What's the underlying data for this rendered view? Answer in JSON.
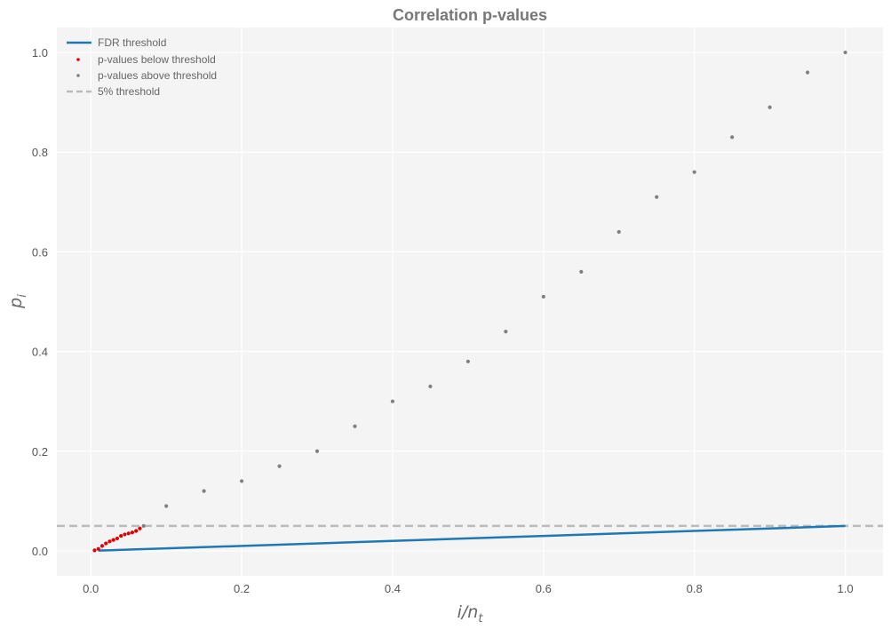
{
  "chart_data": {
    "type": "scatter",
    "title": "Correlation p-values",
    "xlabel": "i/n",
    "xlabel_sub": "t",
    "ylabel": "p",
    "ylabel_sub": "i",
    "xlim": [
      -0.045,
      1.05
    ],
    "ylim": [
      -0.05,
      1.05
    ],
    "x_ticks": [
      0.0,
      0.2,
      0.4,
      0.6,
      0.8,
      1.0
    ],
    "y_ticks": [
      0.0,
      0.2,
      0.4,
      0.6,
      0.8,
      1.0
    ],
    "x_tick_labels": [
      "0.0",
      "0.2",
      "0.4",
      "0.6",
      "0.8",
      "1.0"
    ],
    "y_tick_labels": [
      "0.0",
      "0.2",
      "0.4",
      "0.6",
      "0.8",
      "1.0"
    ],
    "grid": true,
    "legend_position": "top-left",
    "legend": [
      "FDR threshold",
      "p-values below threshold",
      "p-values above threshold",
      "5% threshold"
    ],
    "colors": {
      "fdr": "#1f77b4",
      "below": "#e00000",
      "above": "#808080",
      "threshold": "#bbbbbb",
      "plot_bg": "#f4f4f4",
      "grid": "#ffffff"
    },
    "series": [
      {
        "name": "FDR threshold",
        "kind": "line",
        "x": [
          0.01,
          1.0
        ],
        "y": [
          0.0005,
          0.05
        ]
      },
      {
        "name": "5% threshold",
        "kind": "hline",
        "y": 0.05
      },
      {
        "name": "p-values below threshold",
        "kind": "points",
        "x": [
          0.005,
          0.01,
          0.015,
          0.02,
          0.025,
          0.03,
          0.035,
          0.04,
          0.045,
          0.05,
          0.055,
          0.06,
          0.065
        ],
        "y": [
          0.001,
          0.004,
          0.01,
          0.015,
          0.019,
          0.022,
          0.025,
          0.03,
          0.033,
          0.035,
          0.037,
          0.04,
          0.045
        ]
      },
      {
        "name": "p-values above threshold",
        "kind": "points",
        "x": [
          0.07,
          0.1,
          0.15,
          0.2,
          0.25,
          0.3,
          0.35,
          0.4,
          0.45,
          0.5,
          0.55,
          0.6,
          0.65,
          0.7,
          0.75,
          0.8,
          0.85,
          0.9,
          0.95,
          1.0
        ],
        "y": [
          0.05,
          0.09,
          0.12,
          0.14,
          0.17,
          0.2,
          0.25,
          0.3,
          0.33,
          0.38,
          0.44,
          0.51,
          0.56,
          0.64,
          0.71,
          0.76,
          0.83,
          0.89,
          0.96,
          1.0
        ]
      }
    ]
  }
}
